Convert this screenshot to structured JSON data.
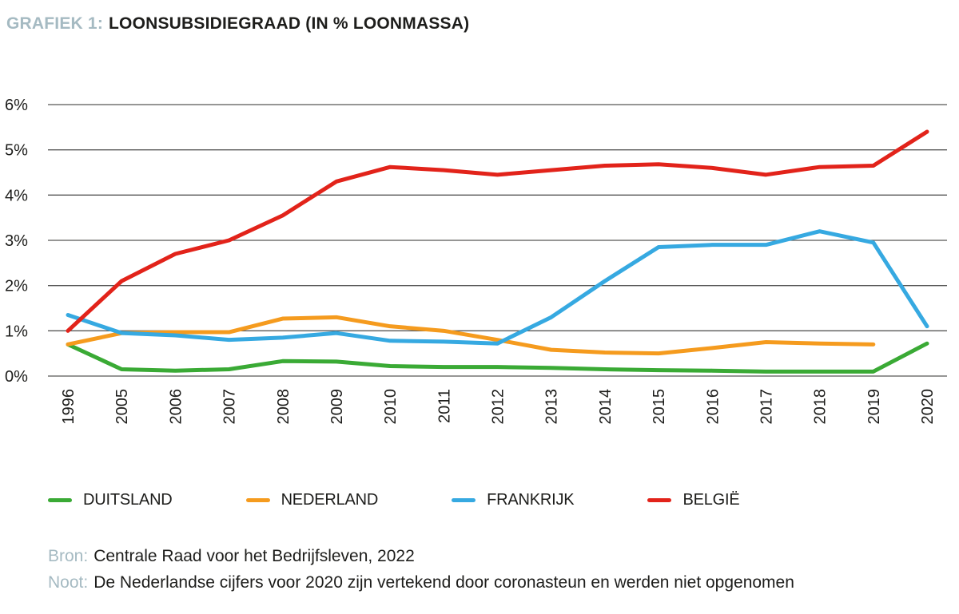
{
  "title": {
    "label": "GRAFIEK 1:",
    "text": "LOONSUBSIDIEGRAAD (IN % LOONMASSA)"
  },
  "colors": {
    "accent_text": "#a5bac2",
    "body_text": "#1d1d1b",
    "gridline": "#575756",
    "duitsland": "#3aaa35",
    "nederland": "#f59b1e",
    "frankrijk": "#36a9e1",
    "belgie": "#e2231a"
  },
  "chart_data": {
    "type": "line",
    "title": "LOONSUBSIDIEGRAAD (IN % LOONMASSA)",
    "xlabel": "",
    "ylabel": "% loonmassa",
    "ylim": [
      0,
      6
    ],
    "ytick_step": 1,
    "ytick_labels": [
      "0%",
      "1%",
      "2%",
      "3%",
      "4%",
      "5%",
      "6%"
    ],
    "grid": "horizontal",
    "legend_position": "bottom",
    "categories": [
      "1996",
      "2005",
      "2006",
      "2007",
      "2008",
      "2009",
      "2010",
      "2011",
      "2012",
      "2013",
      "2014",
      "2015",
      "2016",
      "2017",
      "2018",
      "2019",
      "2020"
    ],
    "series": [
      {
        "name": "DUITSLAND",
        "color": "#3aaa35",
        "values": [
          0.7,
          0.15,
          0.12,
          0.15,
          0.33,
          0.32,
          0.22,
          0.2,
          0.2,
          0.18,
          0.15,
          0.13,
          0.12,
          0.1,
          0.1,
          0.1,
          0.72
        ]
      },
      {
        "name": "NEDERLAND",
        "color": "#f59b1e",
        "values": [
          0.7,
          0.95,
          0.97,
          0.97,
          1.27,
          1.3,
          1.1,
          1.0,
          0.8,
          0.58,
          0.52,
          0.5,
          0.62,
          0.75,
          0.72,
          0.7,
          null
        ]
      },
      {
        "name": "FRANKRIJK",
        "color": "#36a9e1",
        "values": [
          1.35,
          0.95,
          0.9,
          0.8,
          0.85,
          0.95,
          0.78,
          0.76,
          0.72,
          1.3,
          2.1,
          2.85,
          2.9,
          2.9,
          3.2,
          2.95,
          1.1
        ]
      },
      {
        "name": "BELGIË",
        "color": "#e2231a",
        "values": [
          1.0,
          2.1,
          2.7,
          3.0,
          3.55,
          4.3,
          4.62,
          4.55,
          4.45,
          4.55,
          4.65,
          4.68,
          4.6,
          4.45,
          4.62,
          4.65,
          5.4
        ]
      }
    ]
  },
  "footer": {
    "source_label": "Bron:",
    "source_text": "Centrale Raad voor het Bedrijfsleven, 2022",
    "note_label": "Noot:",
    "note_text": "De Nederlandse cijfers voor 2020 zijn vertekend door coronasteun en werden niet opgenomen"
  }
}
